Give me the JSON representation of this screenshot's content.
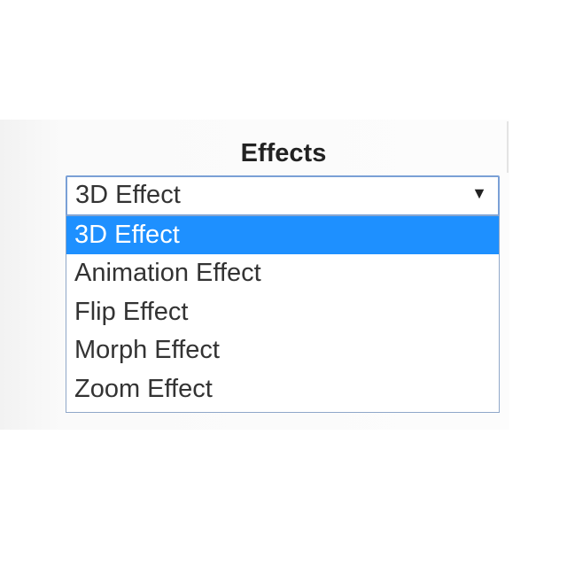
{
  "label": "Effects",
  "select": {
    "value": "3D Effect",
    "arrow_icon": "triangle-down-icon",
    "options": [
      "3D Effect",
      "Animation Effect",
      "Flip Effect",
      "Morph Effect",
      "Zoom Effect"
    ],
    "highlighted_index": 0
  },
  "colors": {
    "highlight": "#1e90ff",
    "border": "#7aa0d6"
  }
}
